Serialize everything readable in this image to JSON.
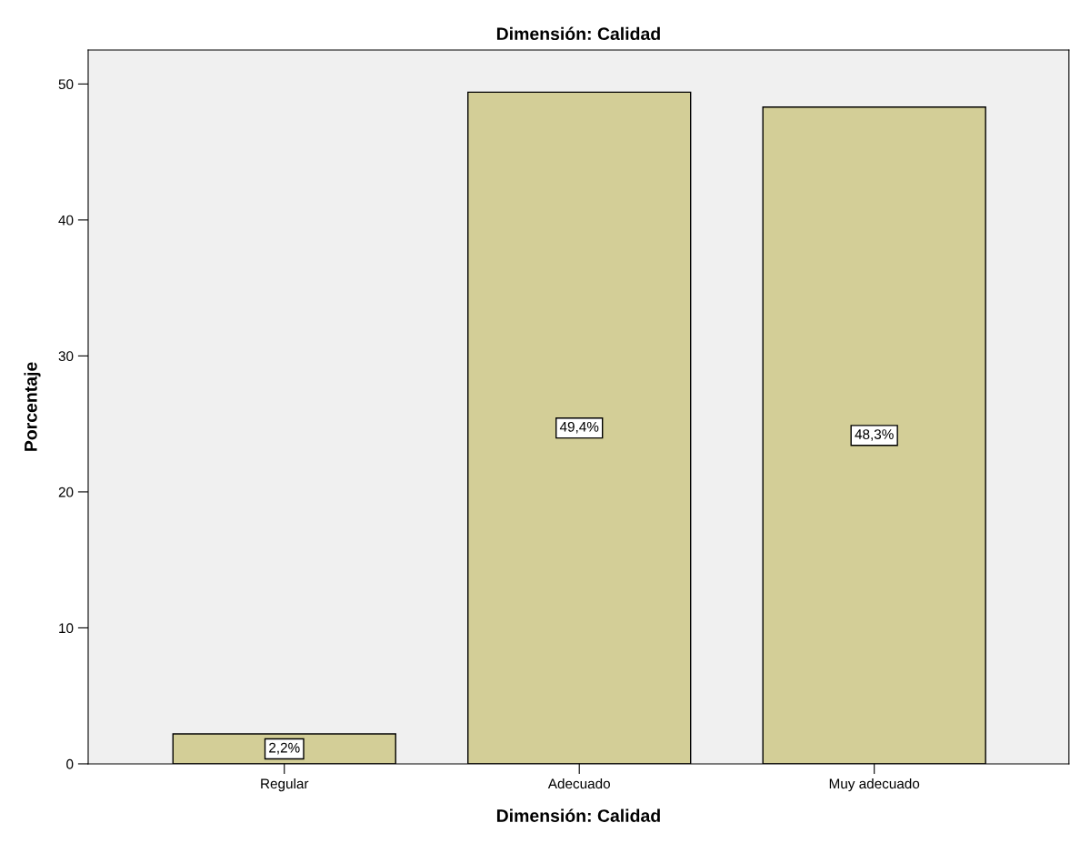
{
  "chart_data": {
    "type": "bar",
    "title": "Dimensión: Calidad",
    "xlabel": "Dimensión: Calidad",
    "ylabel": "Porcentaje",
    "categories": [
      "Regular",
      "Adecuado",
      "Muy adecuado"
    ],
    "values": [
      2.2,
      49.4,
      48.3
    ],
    "value_labels": [
      "2,2%",
      "49,4%",
      "48,3%"
    ],
    "color": "#d3ce97",
    "ylim": [
      0,
      52.5
    ],
    "yticks": [
      0,
      10,
      20,
      30,
      40,
      50
    ],
    "grid": false,
    "legend": false
  }
}
